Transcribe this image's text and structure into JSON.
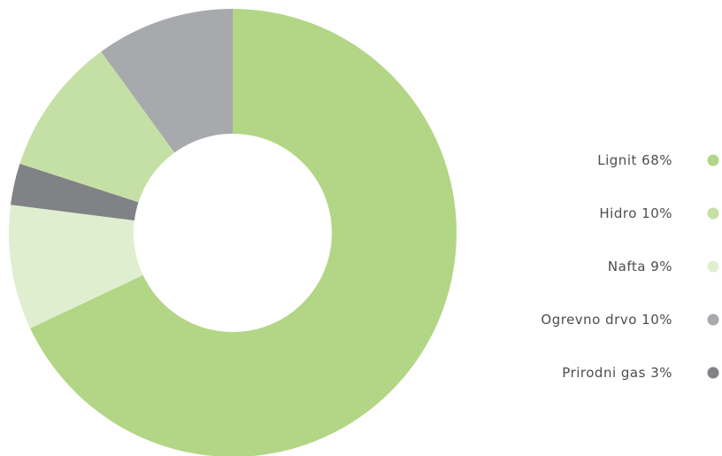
{
  "chart_data": {
    "type": "pie",
    "categories": [
      "Lignit",
      "Hidro",
      "Nafta",
      "Ogrevno drvo",
      "Prirodni gas"
    ],
    "values": [
      68,
      10,
      9,
      10,
      3
    ],
    "value_labels": [
      "68%",
      "10%",
      "9%",
      "10%",
      "3%"
    ],
    "colors": [
      "#b3d686",
      "#c5e0a5",
      "#e0eed0",
      "#a7a9ac",
      "#808285"
    ],
    "legend": "right"
  }
}
